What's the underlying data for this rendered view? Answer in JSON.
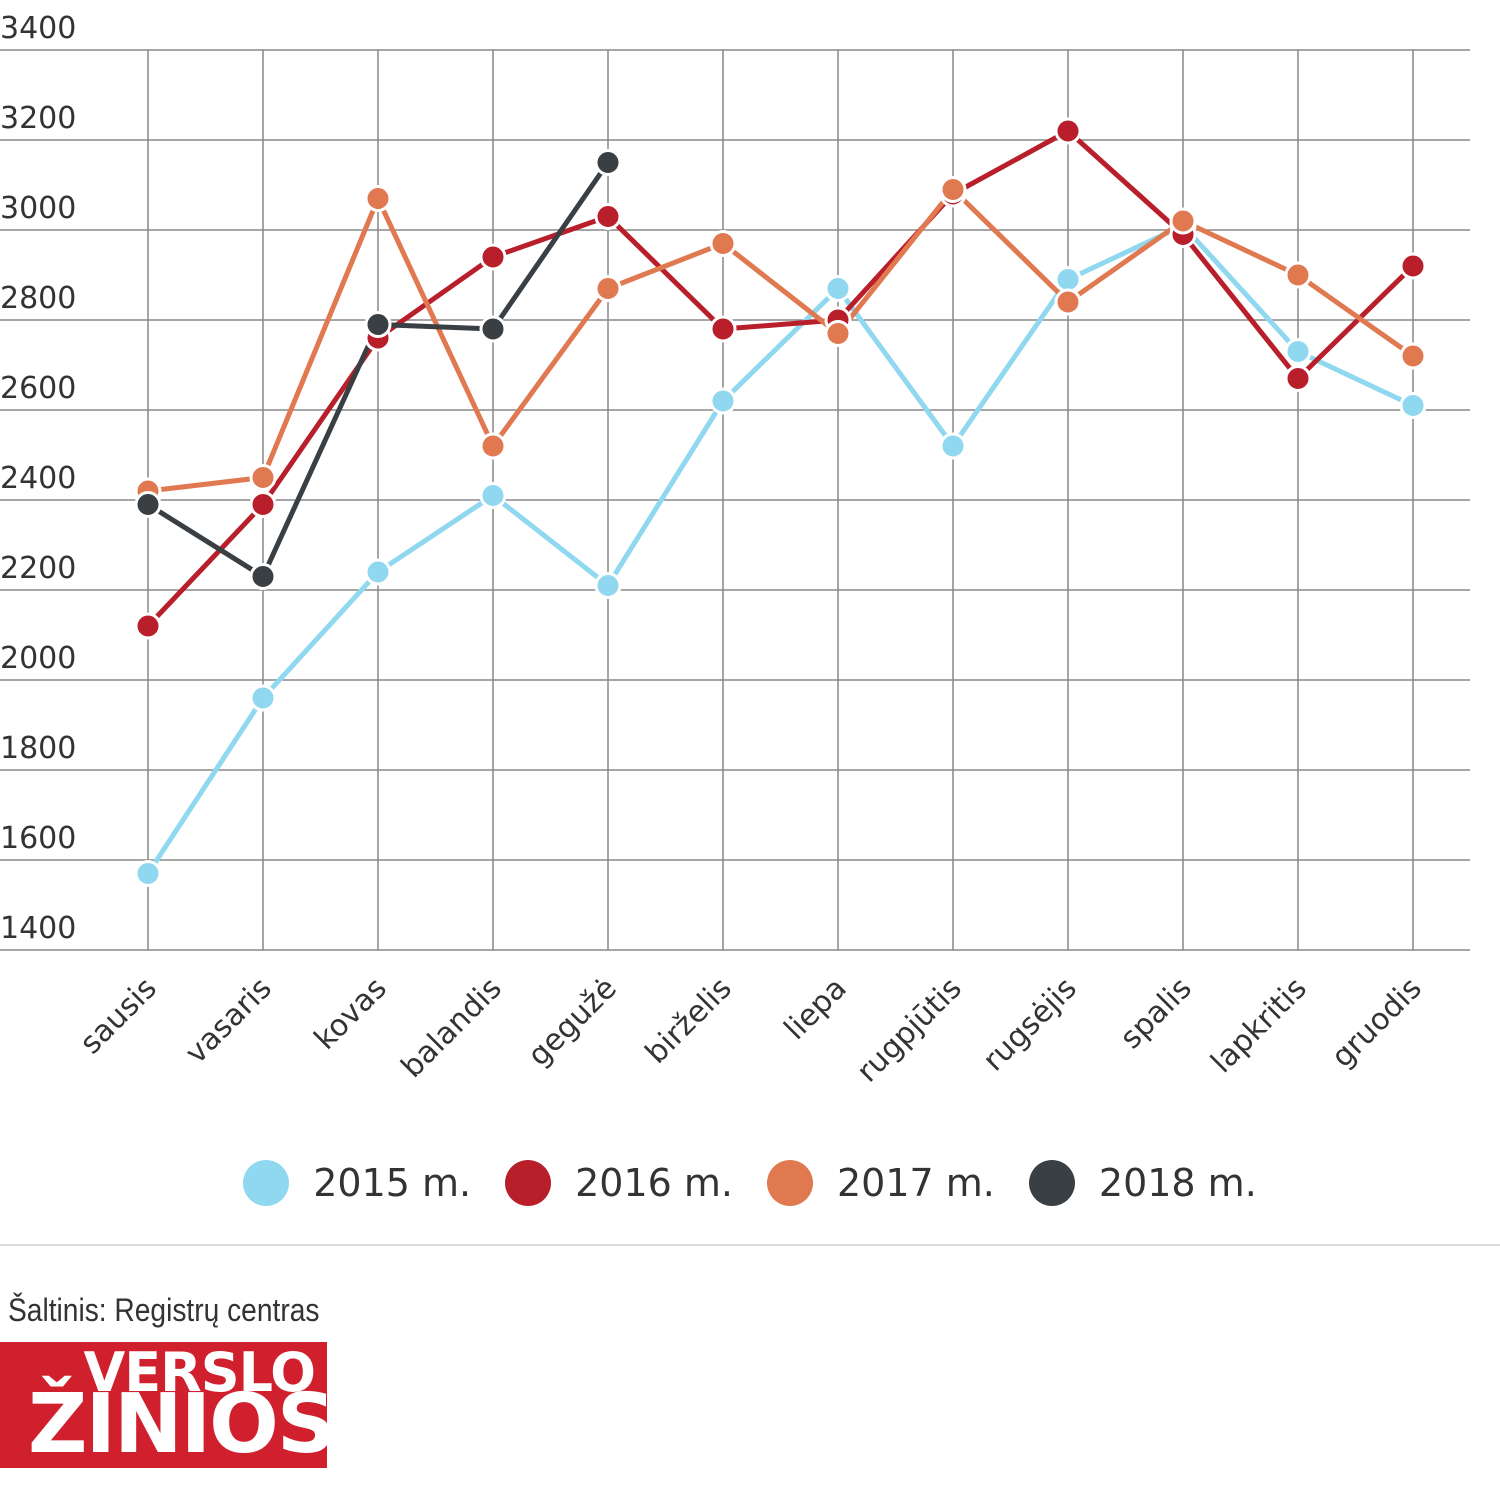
{
  "chart_data": {
    "type": "line",
    "categories": [
      "sausis",
      "vasaris",
      "kovas",
      "balandis",
      "gegužė",
      "birželis",
      "liepa",
      "rugpjūtis",
      "rugsėjis",
      "spalis",
      "lapkritis",
      "gruodis"
    ],
    "ylim": [
      1400,
      3400
    ],
    "yticks": [
      "3400",
      "3200",
      "3000",
      "2800",
      "2600",
      "2400",
      "2200",
      "2000",
      "1800",
      "1600",
      "1400"
    ],
    "grid": true,
    "series": [
      {
        "name": "2015 m.",
        "color": "#8fd8f0",
        "values": [
          1570,
          1960,
          2240,
          2410,
          2210,
          2620,
          2870,
          2520,
          2890,
          3010,
          2730,
          2610
        ]
      },
      {
        "name": "2016 m.",
        "color": "#b81f2b",
        "values": [
          2120,
          2390,
          2760,
          2940,
          3030,
          2780,
          2800,
          3080,
          3220,
          2990,
          2670,
          2920
        ]
      },
      {
        "name": "2017 m.",
        "color": "#e07850",
        "values": [
          2420,
          2450,
          3070,
          2520,
          2870,
          2970,
          2770,
          3090,
          2840,
          3020,
          2900,
          2720
        ]
      },
      {
        "name": "2018 m.",
        "color": "#3a3f44",
        "values": [
          2390,
          2230,
          2790,
          2780,
          3150,
          null,
          null,
          null,
          null,
          null,
          null,
          null
        ]
      }
    ],
    "legend_position": "bottom"
  },
  "legend": {
    "items": [
      {
        "label": "2015 m.",
        "color": "#8fd8f0"
      },
      {
        "label": "2016 m.",
        "color": "#b81f2b"
      },
      {
        "label": "2017 m.",
        "color": "#e07850"
      },
      {
        "label": "2018 m.",
        "color": "#3a3f44"
      }
    ]
  },
  "footer": {
    "source": "Šaltinis: Registrų centras",
    "logo_line1": "VERSLO",
    "logo_line2": "ŽINIOS"
  }
}
